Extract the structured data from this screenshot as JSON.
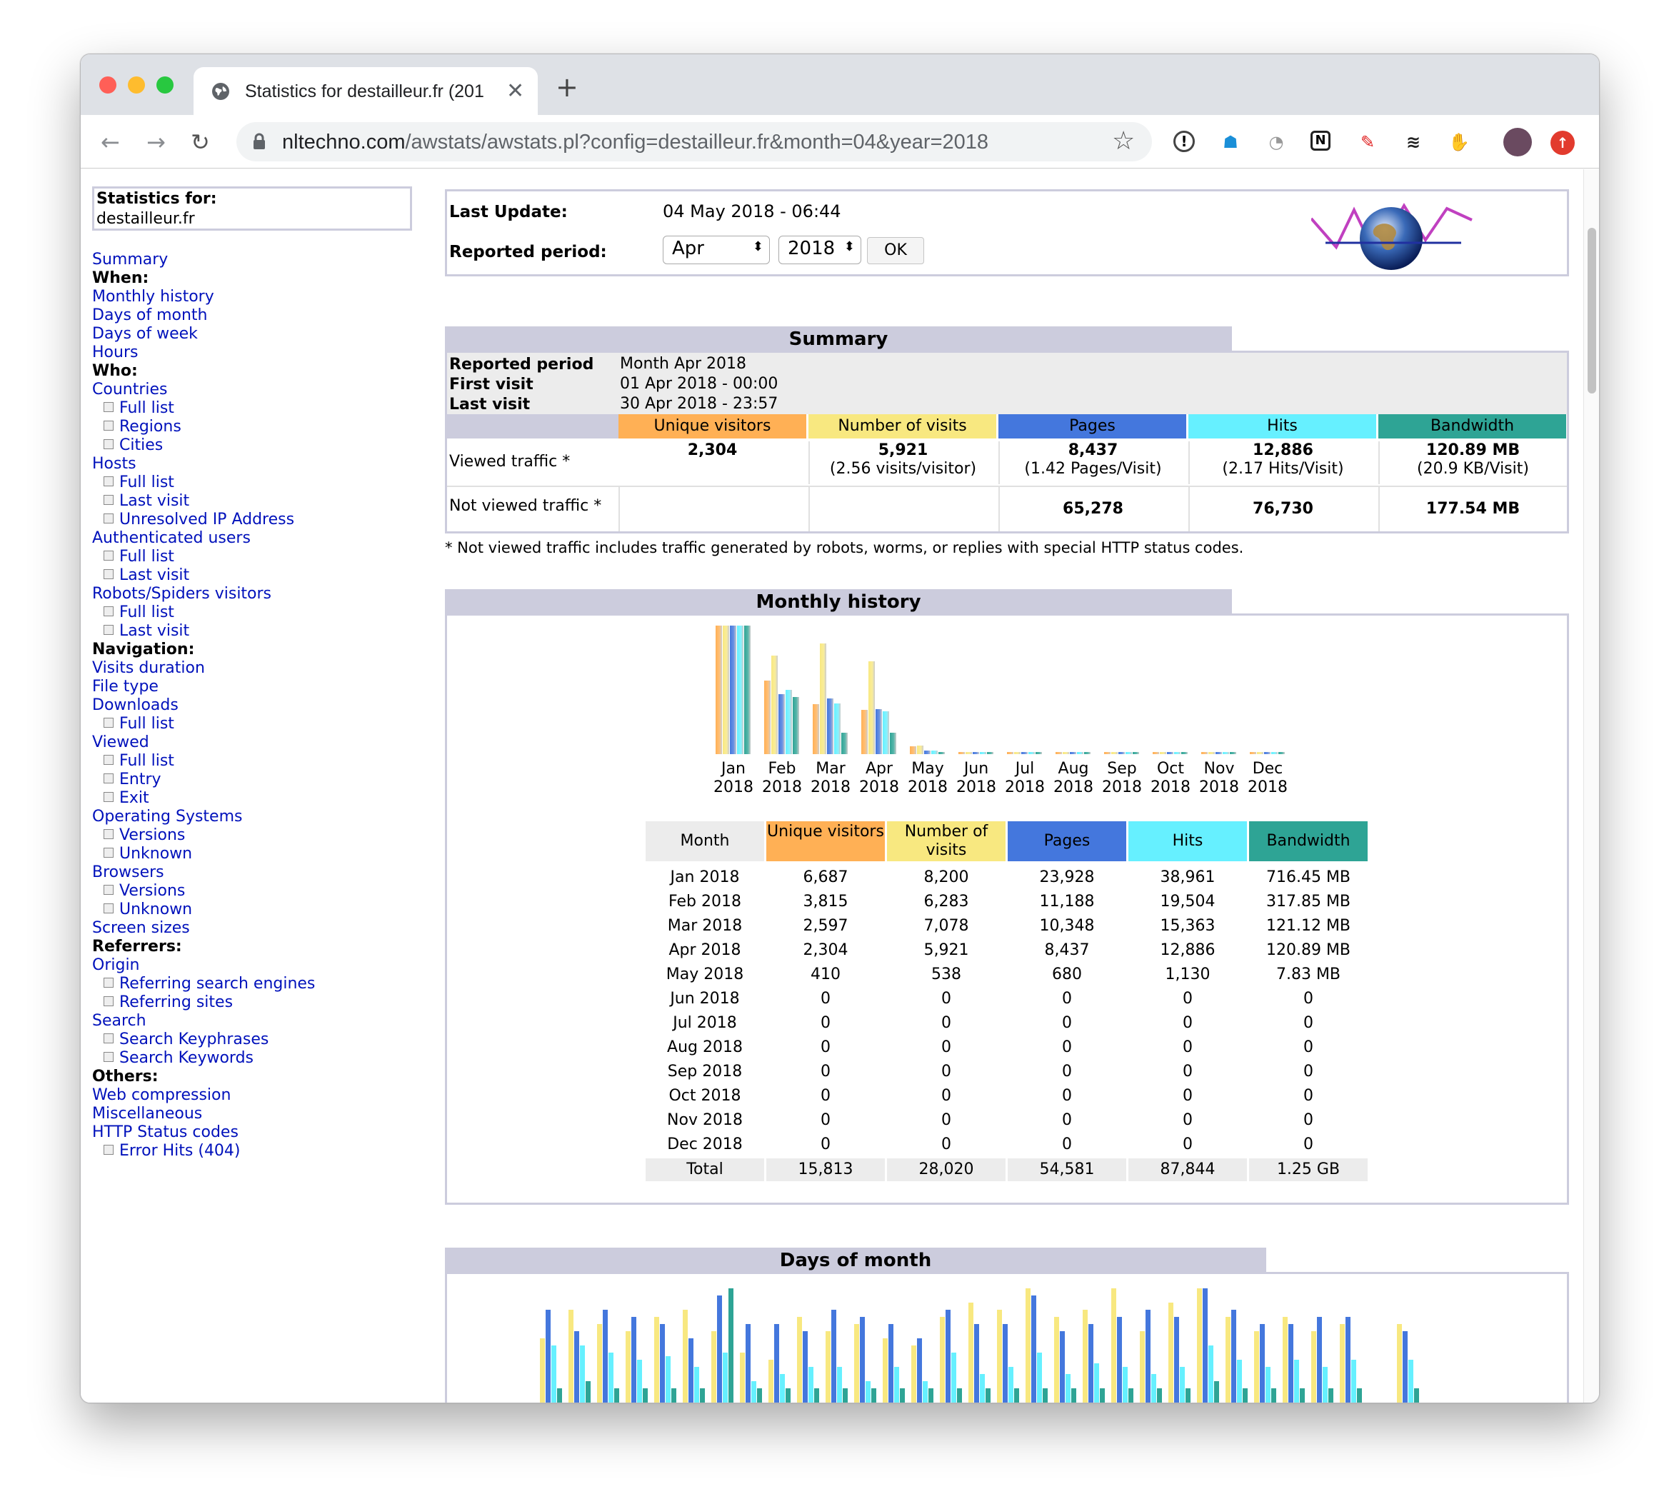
{
  "browser": {
    "tab_title": "Statistics for destailleur.fr (201",
    "url_host": "nltechno.com",
    "url_path": "/awstats/awstats.pl?config=destailleur.fr&month=04&year=2018",
    "colors": {
      "close": "#ff5f57",
      "min": "#febc2e",
      "max": "#28c840"
    }
  },
  "menu": {
    "head_label": "Statistics for:",
    "head_value": "destailleur.fr",
    "items": [
      {
        "t": "Summary",
        "k": "link",
        "sub": false
      },
      {
        "t": "When:",
        "k": "head",
        "sub": false
      },
      {
        "t": "Monthly history",
        "k": "link",
        "sub": false
      },
      {
        "t": "Days of month",
        "k": "link",
        "sub": false
      },
      {
        "t": "Days of week",
        "k": "link",
        "sub": false
      },
      {
        "t": "Hours",
        "k": "link",
        "sub": false
      },
      {
        "t": "Who:",
        "k": "head",
        "sub": false
      },
      {
        "t": "Countries",
        "k": "link",
        "sub": false
      },
      {
        "t": "Full list",
        "k": "link",
        "sub": true
      },
      {
        "t": "Regions",
        "k": "link",
        "sub": true
      },
      {
        "t": "Cities",
        "k": "link",
        "sub": true
      },
      {
        "t": "Hosts",
        "k": "link",
        "sub": false
      },
      {
        "t": "Full list",
        "k": "link",
        "sub": true
      },
      {
        "t": "Last visit",
        "k": "link",
        "sub": true
      },
      {
        "t": "Unresolved IP Address",
        "k": "link",
        "sub": true
      },
      {
        "t": "Authenticated users",
        "k": "link",
        "sub": false
      },
      {
        "t": "Full list",
        "k": "link",
        "sub": true
      },
      {
        "t": "Last visit",
        "k": "link",
        "sub": true
      },
      {
        "t": "Robots/Spiders visitors",
        "k": "link",
        "sub": false
      },
      {
        "t": "Full list",
        "k": "link",
        "sub": true
      },
      {
        "t": "Last visit",
        "k": "link",
        "sub": true
      },
      {
        "t": "Navigation:",
        "k": "head",
        "sub": false
      },
      {
        "t": "Visits duration",
        "k": "link",
        "sub": false
      },
      {
        "t": "File type",
        "k": "link",
        "sub": false
      },
      {
        "t": "Downloads",
        "k": "link",
        "sub": false
      },
      {
        "t": "Full list",
        "k": "link",
        "sub": true
      },
      {
        "t": "Viewed",
        "k": "link",
        "sub": false
      },
      {
        "t": "Full list",
        "k": "link",
        "sub": true
      },
      {
        "t": "Entry",
        "k": "link",
        "sub": true
      },
      {
        "t": "Exit",
        "k": "link",
        "sub": true
      },
      {
        "t": "Operating Systems",
        "k": "link",
        "sub": false
      },
      {
        "t": "Versions",
        "k": "link",
        "sub": true
      },
      {
        "t": "Unknown",
        "k": "link",
        "sub": true
      },
      {
        "t": "Browsers",
        "k": "link",
        "sub": false
      },
      {
        "t": "Versions",
        "k": "link",
        "sub": true
      },
      {
        "t": "Unknown",
        "k": "link",
        "sub": true
      },
      {
        "t": "Screen sizes",
        "k": "link",
        "sub": false
      },
      {
        "t": "Referrers:",
        "k": "head",
        "sub": false
      },
      {
        "t": "Origin",
        "k": "link",
        "sub": false
      },
      {
        "t": "Referring search engines",
        "k": "link",
        "sub": true
      },
      {
        "t": "Referring sites",
        "k": "link",
        "sub": true
      },
      {
        "t": "Search",
        "k": "link",
        "sub": false
      },
      {
        "t": "Search Keyphrases",
        "k": "link",
        "sub": true
      },
      {
        "t": "Search Keywords",
        "k": "link",
        "sub": true
      },
      {
        "t": "Others:",
        "k": "head",
        "sub": false
      },
      {
        "t": "Web compression",
        "k": "link",
        "sub": false
      },
      {
        "t": "Miscellaneous",
        "k": "link",
        "sub": false
      },
      {
        "t": "HTTP Status codes",
        "k": "link",
        "sub": false
      },
      {
        "t": "Error Hits (404)",
        "k": "link",
        "sub": true
      }
    ]
  },
  "update": {
    "last_update_label": "Last Update:",
    "last_update_value": "04 May 2018 - 06:44",
    "period_label": "Reported period:",
    "month_select": "Apr",
    "year_select": "2018",
    "ok_label": "OK"
  },
  "summary": {
    "title": "Summary",
    "reported_period_label": "Reported period",
    "reported_period_value": "Month Apr 2018",
    "first_visit_label": "First visit",
    "first_visit_value": "01 Apr 2018 - 00:00",
    "last_visit_label": "Last visit",
    "last_visit_value": "30 Apr 2018 - 23:57",
    "headers": [
      "Unique visitors",
      "Number of visits",
      "Pages",
      "Hits",
      "Bandwidth"
    ],
    "viewed_label": "Viewed traffic *",
    "viewed": [
      {
        "v": "2,304",
        "s": ""
      },
      {
        "v": "5,921",
        "s": "(2.56 visits/visitor)"
      },
      {
        "v": "8,437",
        "s": "(1.42 Pages/Visit)"
      },
      {
        "v": "12,886",
        "s": "(2.17 Hits/Visit)"
      },
      {
        "v": "120.89 MB",
        "s": "(20.9 KB/Visit)"
      }
    ],
    "not_viewed_label": "Not viewed traffic *",
    "not_viewed": [
      "",
      "",
      "65,278",
      "76,730",
      "177.54 MB"
    ],
    "footnote": "* Not viewed traffic includes traffic generated by robots, worms, or replies with special HTTP status codes."
  },
  "colors": {
    "unique": "#ffb055",
    "visits": "#f8e880",
    "pages": "#4477dd",
    "hits": "#66f0ff",
    "bandwidth": "#2ea495",
    "section": "#ccccdd",
    "link": "#0011bb"
  },
  "monthly": {
    "title": "Monthly history",
    "table_headers": [
      "Month",
      "Unique visitors",
      "Number of visits",
      "Pages",
      "Hits",
      "Bandwidth"
    ],
    "rows": [
      [
        "Jan 2018",
        "6,687",
        "8,200",
        "23,928",
        "38,961",
        "716.45 MB"
      ],
      [
        "Feb 2018",
        "3,815",
        "6,283",
        "11,188",
        "19,504",
        "317.85 MB"
      ],
      [
        "Mar 2018",
        "2,597",
        "7,078",
        "10,348",
        "15,363",
        "121.12 MB"
      ],
      [
        "Apr 2018",
        "2,304",
        "5,921",
        "8,437",
        "12,886",
        "120.89 MB"
      ],
      [
        "May 2018",
        "410",
        "538",
        "680",
        "1,130",
        "7.83 MB"
      ],
      [
        "Jun 2018",
        "0",
        "0",
        "0",
        "0",
        "0"
      ],
      [
        "Jul 2018",
        "0",
        "0",
        "0",
        "0",
        "0"
      ],
      [
        "Aug 2018",
        "0",
        "0",
        "0",
        "0",
        "0"
      ],
      [
        "Sep 2018",
        "0",
        "0",
        "0",
        "0",
        "0"
      ],
      [
        "Oct 2018",
        "0",
        "0",
        "0",
        "0",
        "0"
      ],
      [
        "Nov 2018",
        "0",
        "0",
        "0",
        "0",
        "0"
      ],
      [
        "Dec 2018",
        "0",
        "0",
        "0",
        "0",
        "0"
      ]
    ],
    "total": [
      "Total",
      "15,813",
      "28,020",
      "54,581",
      "87,844",
      "1.25 GB"
    ]
  },
  "chart_data": {
    "type": "bar",
    "categories": [
      "Jan",
      "Feb",
      "Mar",
      "Apr",
      "May",
      "Jun",
      "Jul",
      "Aug",
      "Sep",
      "Oct",
      "Nov",
      "Dec"
    ],
    "category_years": [
      "2018",
      "2018",
      "2018",
      "2018",
      "2018",
      "2018",
      "2018",
      "2018",
      "2018",
      "2018",
      "2018",
      "2018"
    ],
    "series": [
      {
        "name": "Unique visitors",
        "values": [
          6687,
          3815,
          2597,
          2304,
          410,
          0,
          0,
          0,
          0,
          0,
          0,
          0
        ]
      },
      {
        "name": "Number of visits",
        "values": [
          8200,
          6283,
          7078,
          5921,
          538,
          0,
          0,
          0,
          0,
          0,
          0,
          0
        ]
      },
      {
        "name": "Pages",
        "values": [
          23928,
          11188,
          10348,
          8437,
          680,
          0,
          0,
          0,
          0,
          0,
          0,
          0
        ]
      },
      {
        "name": "Hits",
        "values": [
          38961,
          19504,
          15363,
          12886,
          1130,
          0,
          0,
          0,
          0,
          0,
          0,
          0
        ]
      },
      {
        "name": "Bandwidth",
        "values": [
          716.45,
          317.85,
          121.12,
          120.89,
          7.83,
          0,
          0,
          0,
          0,
          0,
          0,
          0
        ]
      }
    ]
  },
  "days": {
    "title": "Days of month"
  }
}
